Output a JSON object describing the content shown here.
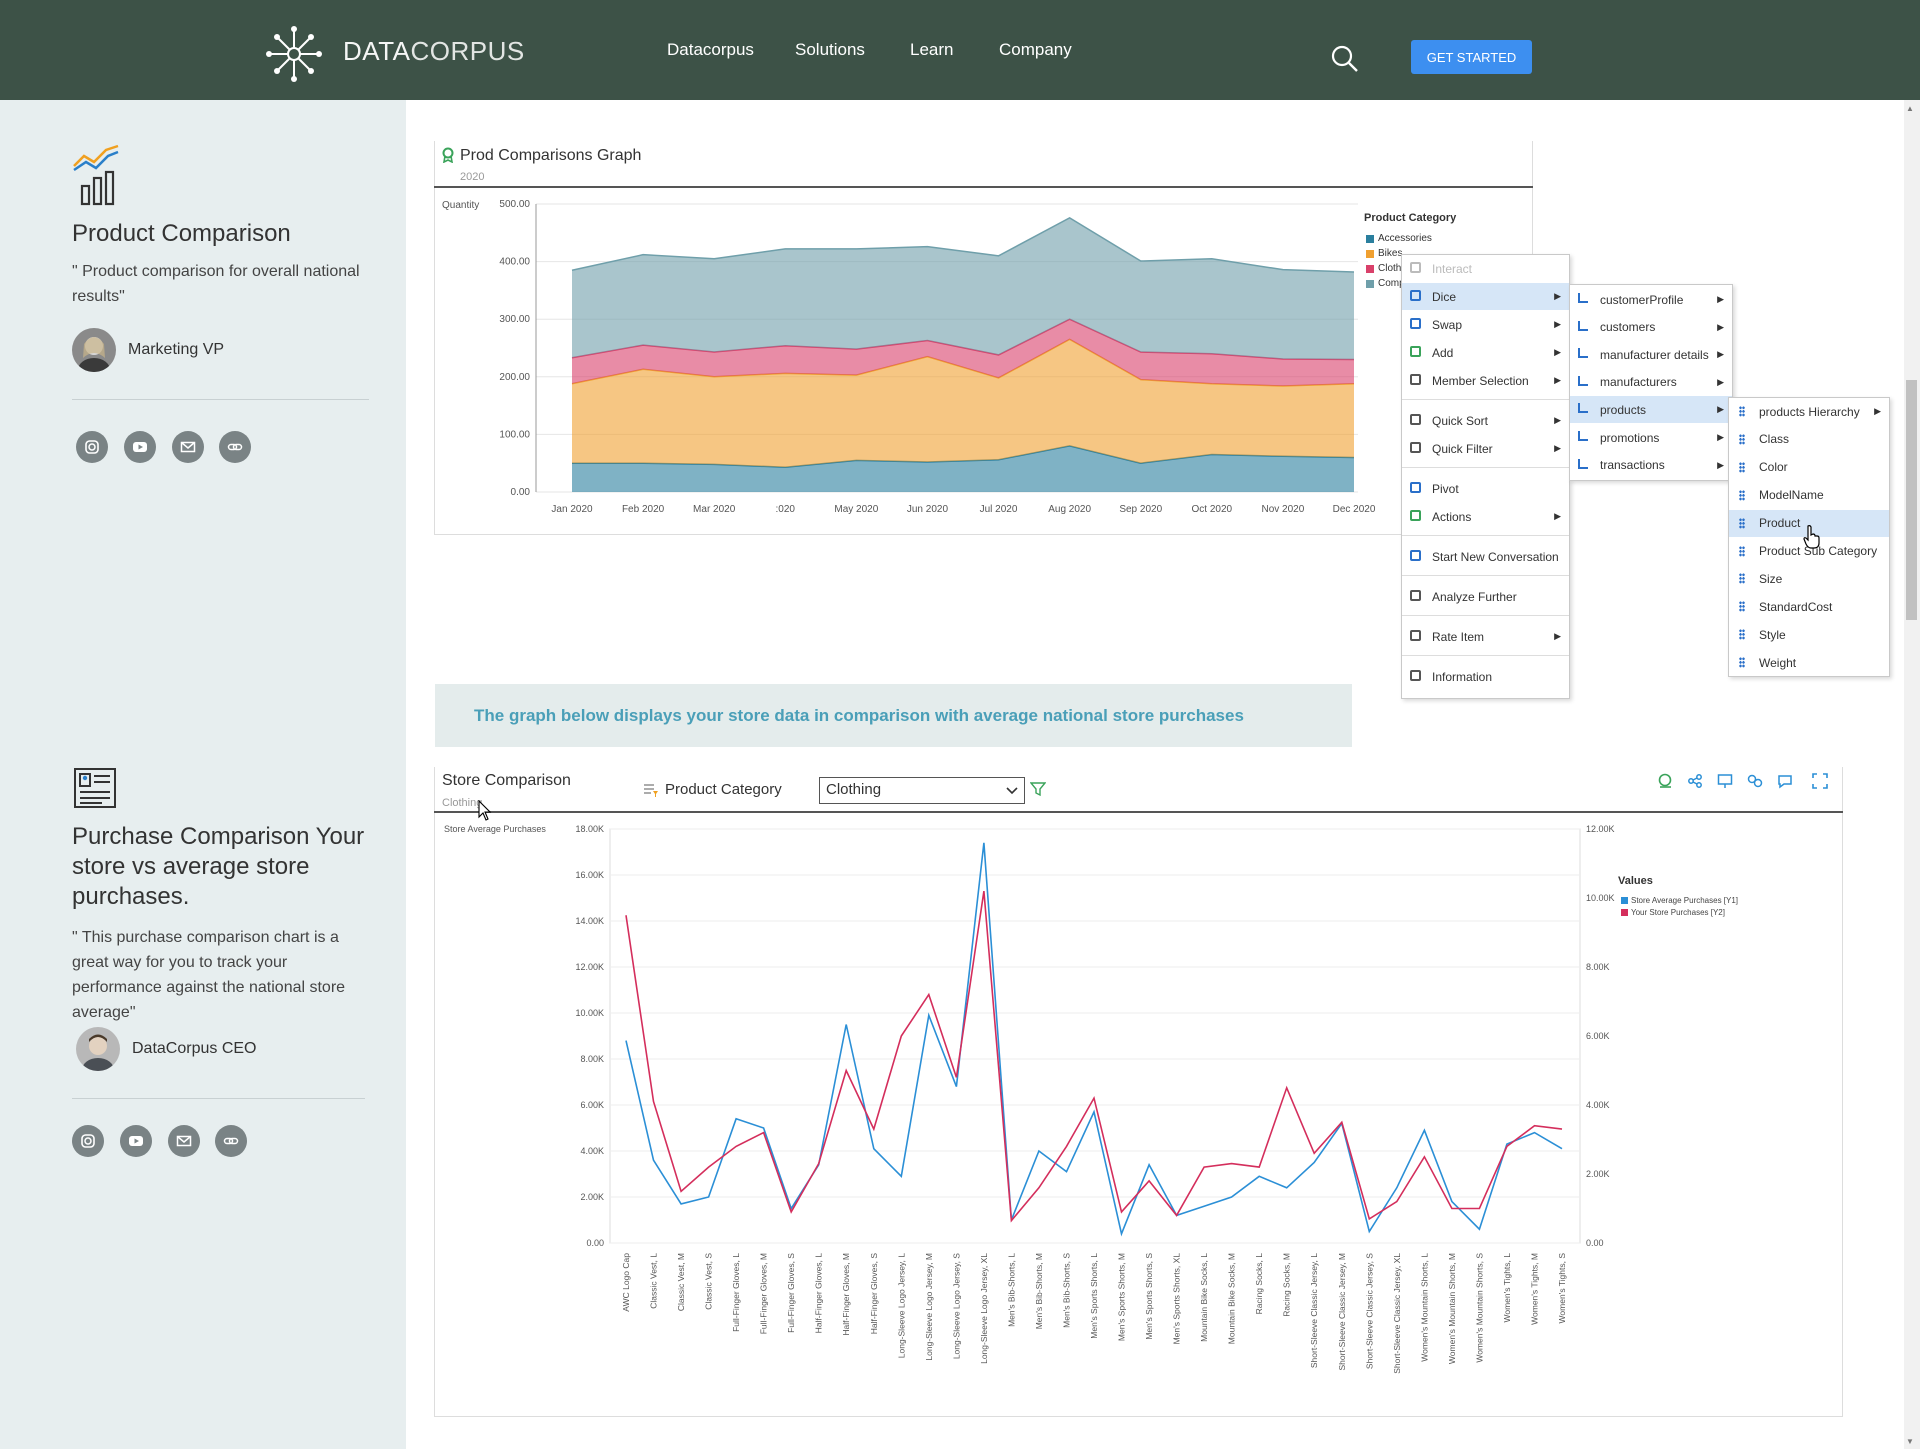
{
  "nav": {
    "brand_prefix": "DATA",
    "brand_suffix": "CORPUS",
    "links": [
      "Datacorpus",
      "Solutions",
      "Learn",
      "Company"
    ],
    "cta": "GET STARTED"
  },
  "sidebar": {
    "section1": {
      "title": "Product Comparison",
      "quote": "\" Product comparison for overall national results\"",
      "person_role": "Marketing VP"
    },
    "section2": {
      "title": "Purchase Comparison Your store vs average store purchases.",
      "quote": "\" This purchase comparison chart is a great way for you to track your performance against the national store average\"",
      "person_role": "DataCorpus CEO"
    },
    "social_icons": [
      "instagram-icon",
      "youtube-icon",
      "mail-icon",
      "link-icon"
    ]
  },
  "chart1": {
    "title": "Prod Comparisons Graph",
    "subtitle": "2020",
    "legend_title": "Product Category",
    "legend": [
      {
        "name": "Accessories",
        "color": "#2a7f9e"
      },
      {
        "name": "Bikes",
        "color": "#f0a030"
      },
      {
        "name": "Clothing",
        "color": "#d9406a"
      },
      {
        "name": "Components",
        "color": "#6f9faa"
      }
    ]
  },
  "banner": {
    "text": "The graph below displays your store data in comparison with average national store purchases"
  },
  "chart2": {
    "title": "Store Comparison",
    "subtitle": "Clothing",
    "filter_label": "Product Category",
    "filter_value": "Clothing",
    "legend_title": "Values",
    "legend": [
      {
        "name": "Store Average Purchases [Y1]",
        "color": "#2b8fd6"
      },
      {
        "name": "Your Store Purchases [Y2]",
        "color": "#d42e5c"
      }
    ]
  },
  "context_menu": {
    "main": [
      {
        "label": "Interact",
        "disabled": true
      },
      {
        "label": "Dice",
        "submenu": true,
        "highlighted": true
      },
      {
        "label": "Swap",
        "submenu": true
      },
      {
        "label": "Add",
        "submenu": true
      },
      {
        "label": "Member Selection",
        "submenu": true
      },
      {
        "label": "Quick Sort",
        "submenu": true
      },
      {
        "label": "Quick Filter",
        "submenu": true
      },
      {
        "label": "Pivot"
      },
      {
        "label": "Actions",
        "submenu": true
      },
      {
        "label": "Start New Conversation"
      },
      {
        "label": "Analyze Further"
      },
      {
        "label": "Rate Item",
        "submenu": true
      },
      {
        "label": "Information"
      }
    ],
    "dice": [
      "customerProfile",
      "customers",
      "manufacturer details",
      "manufacturers",
      "products",
      "promotions",
      "transactions"
    ],
    "products": [
      "products Hierarchy",
      "Class",
      "Color",
      "ModelName",
      "Product",
      "Product Sub Category",
      "Size",
      "StandardCost",
      "Style",
      "Weight"
    ]
  },
  "chart_data": [
    {
      "type": "area",
      "title": "Prod Comparisons Graph",
      "subtitle": "2020",
      "ylabel": "Quantity",
      "ylim": [
        0,
        500
      ],
      "yticks": [
        "0.00",
        "100.00",
        "200.00",
        "300.00",
        "400.00",
        "500.00"
      ],
      "x_tick_labels": [
        "Jan 2020",
        "Feb 2020",
        "Mar 2020",
        ":020",
        "May 2020",
        "Jun 2020",
        "Jul 2020",
        "Aug 2020",
        "Sep 2020",
        "Oct 2020",
        "Nov 2020",
        "Dec 2020"
      ],
      "stacked": true,
      "legend_title": "Product Category",
      "series": [
        {
          "name": "Accessories",
          "values": [
            50,
            50,
            48,
            43,
            55,
            52,
            56,
            80,
            50,
            65,
            62,
            60
          ]
        },
        {
          "name": "Bikes",
          "values": [
            138,
            163,
            152,
            163,
            148,
            183,
            142,
            185,
            145,
            123,
            122,
            128
          ]
        },
        {
          "name": "Clothing",
          "values": [
            45,
            42,
            43,
            48,
            45,
            28,
            40,
            35,
            48,
            52,
            47,
            42
          ]
        },
        {
          "name": "Components",
          "values": [
            152,
            157,
            162,
            168,
            174,
            163,
            172,
            176,
            158,
            165,
            155,
            152
          ]
        }
      ],
      "legend_placement": "right"
    },
    {
      "type": "line",
      "title": "Store Comparison",
      "subtitle": "Clothing",
      "ylabel": "Store Average Purchases",
      "y1_ticks": [
        "0.00",
        "2.00K",
        "4.00K",
        "6.00K",
        "8.00K",
        "10.00K",
        "12.00K",
        "14.00K",
        "16.00K",
        "18.00K"
      ],
      "y2_ticks": [
        "0.00",
        "2.00K",
        "4.00K",
        "6.00K",
        "8.00K",
        "10.00K",
        "12.00K"
      ],
      "y1lim": [
        0,
        18000
      ],
      "y2lim": [
        0,
        12000
      ],
      "legend_title": "Values",
      "categories": [
        "AWC Logo Cap",
        "Classic Vest, L",
        "Classic Vest, M",
        "Classic Vest, S",
        "Full-Finger Gloves, L",
        "Full-Finger Gloves, M",
        "Full-Finger Gloves, S",
        "Half-Finger Gloves, L",
        "Half-Finger Gloves, M",
        "Half-Finger Gloves, S",
        "Long-Sleeve Logo Jersey, L",
        "Long-Sleeve Logo Jersey, M",
        "Long-Sleeve Logo Jersey, S",
        "Long-Sleeve Logo Jersey, XL",
        "Men's Bib-Shorts, L",
        "Men's Bib-Shorts, M",
        "Men's Bib-Shorts, S",
        "Men's Sports Shorts, L",
        "Men's Sports Shorts, M",
        "Men's Sports Shorts, S",
        "Men's Sports Shorts, XL",
        "Mountain Bike Socks, L",
        "Mountain Bike Socks, M",
        "Racing Socks, L",
        "Racing Socks, M",
        "Short-Sleeve Classic Jersey, L",
        "Short-Sleeve Classic Jersey, M",
        "Short-Sleeve Classic Jersey, S",
        "Short-Sleeve Classic Jersey, XL",
        "Women's Mountain Shorts, L",
        "Women's Mountain Shorts, M",
        "Women's Mountain Shorts, S",
        "Women's Tights, L",
        "Women's Tights, M",
        "Women's Tights, S"
      ],
      "series": [
        {
          "name": "Store Average Purchases [Y1]",
          "axis": "y1",
          "values": [
            8800,
            3600,
            1700,
            2000,
            5400,
            5000,
            1500,
            3400,
            9500,
            4100,
            2900,
            9900,
            6800,
            17400,
            1000,
            4000,
            3100,
            5700,
            400,
            3400,
            1200,
            1600,
            2000,
            2900,
            2400,
            3500,
            5200,
            500,
            2400,
            4900,
            1800,
            600,
            4300,
            4800,
            4100
          ]
        },
        {
          "name": "Your Store Purchases [Y2]",
          "axis": "y2",
          "values": [
            9500,
            4100,
            1500,
            2200,
            2800,
            3200,
            900,
            2300,
            5000,
            3300,
            6000,
            7200,
            4800,
            10200,
            650,
            1600,
            2800,
            4200,
            900,
            1800,
            800,
            2200,
            2300,
            2200,
            4500,
            2600,
            3500,
            700,
            1200,
            2500,
            1000,
            1000,
            2800,
            3400,
            3300
          ]
        }
      ],
      "legend_placement": "right"
    }
  ]
}
